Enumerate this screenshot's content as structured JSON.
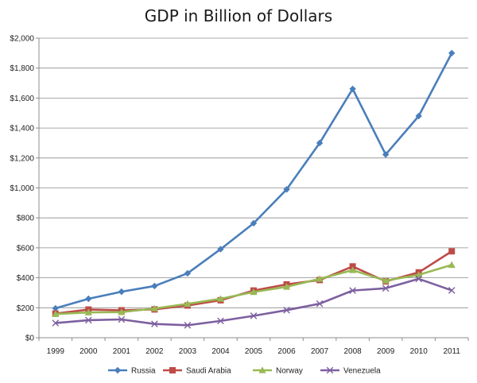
{
  "chart_data": {
    "type": "line",
    "title": "GDP in Billion of Dollars",
    "xlabel": "",
    "ylabel": "",
    "categories": [
      "1999",
      "2000",
      "2001",
      "2002",
      "2003",
      "2004",
      "2005",
      "2006",
      "2007",
      "2008",
      "2009",
      "2010",
      "2011"
    ],
    "ylim": [
      0,
      2000
    ],
    "yticks": [
      {
        "value": 0,
        "label": "$0"
      },
      {
        "value": 200,
        "label": "$200"
      },
      {
        "value": 400,
        "label": "$400"
      },
      {
        "value": 600,
        "label": "$600"
      },
      {
        "value": 800,
        "label": "$800"
      },
      {
        "value": 1000,
        "label": "$1,000"
      },
      {
        "value": 1200,
        "label": "$1,200"
      },
      {
        "value": 1400,
        "label": "$1,400"
      },
      {
        "value": 1600,
        "label": "$1,600"
      },
      {
        "value": 1800,
        "label": "$1,800"
      },
      {
        "value": 2000,
        "label": "$2,000"
      }
    ],
    "grid": true,
    "legend_position": "bottom",
    "series": [
      {
        "name": "Russia",
        "color": "#4a7ebb",
        "marker": "diamond",
        "values": [
          196,
          260,
          307,
          345,
          430,
          591,
          764,
          990,
          1300,
          1661,
          1223,
          1480,
          1900
        ]
      },
      {
        "name": "Saudi Arabia",
        "color": "#be4b48",
        "marker": "square",
        "values": [
          161,
          188,
          183,
          189,
          215,
          250,
          315,
          356,
          385,
          476,
          376,
          436,
          577
        ]
      },
      {
        "name": "Norway",
        "color": "#98b954",
        "marker": "triangle",
        "values": [
          158,
          169,
          171,
          195,
          226,
          260,
          305,
          340,
          393,
          451,
          381,
          420,
          486
        ]
      },
      {
        "name": "Venezuela",
        "color": "#7d60a0",
        "marker": "x",
        "values": [
          98,
          117,
          122,
          92,
          83,
          112,
          146,
          184,
          227,
          315,
          330,
          393,
          316
        ]
      }
    ]
  }
}
